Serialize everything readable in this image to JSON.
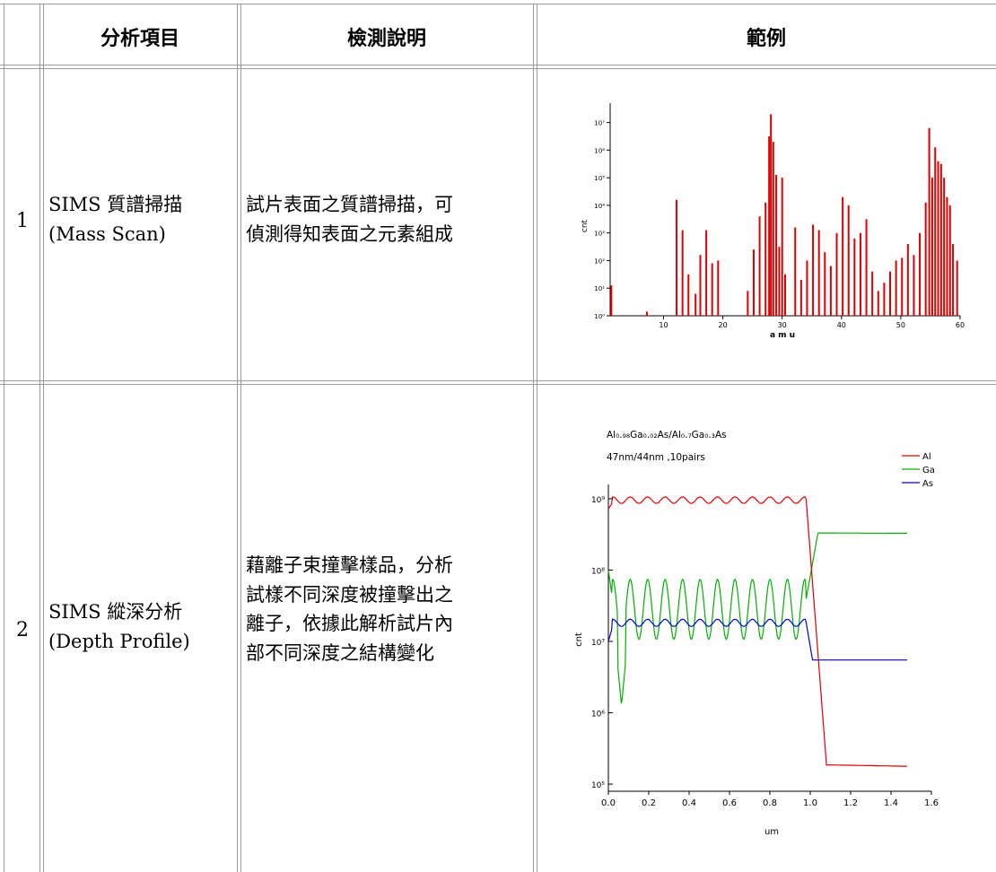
{
  "table": {
    "headers": [
      "分析項目",
      "檢測說明",
      "範例"
    ],
    "rows": [
      {
        "index": "1",
        "item_line1": "SIMS 質譜掃描",
        "item_line2": "(Mass Scan)",
        "desc_lines": [
          "試片表面之質譜掃描，可",
          "偵測得知表面之元素組成"
        ]
      },
      {
        "index": "2",
        "item_line1": "SIMS 縱深分析",
        "item_line2": "(Depth Profile)",
        "desc_lines": [
          "藉離子束撞擊樣品，分析",
          "試樣不同深度被撞擊出之",
          "離子，依據此解析試片內",
          "部不同深度之結構變化"
        ]
      }
    ]
  },
  "chart_data": [
    {
      "type": "bar",
      "xlabel": "a m u",
      "ylabel": "cnt",
      "xticks": [
        "10",
        "20",
        "30",
        "40",
        "50",
        "60"
      ],
      "yticks": [
        "10⁰",
        "10¹",
        "10²",
        "10³",
        "10⁴",
        "10⁵",
        "10⁶",
        "10⁷"
      ],
      "xlim": [
        1,
        60
      ],
      "ylim_log10": [
        0,
        7.7
      ],
      "color": "#e00000",
      "points": [
        [
          1.2,
          1.1
        ],
        [
          7.2,
          0.15
        ],
        [
          12.2,
          4.2
        ],
        [
          13.2,
          3.1
        ],
        [
          14.2,
          1.5
        ],
        [
          15.4,
          0.8
        ],
        [
          16.2,
          2.2
        ],
        [
          17.2,
          3.1
        ],
        [
          18.2,
          1.9
        ],
        [
          19.2,
          2.0
        ],
        [
          24.2,
          0.9
        ],
        [
          25.2,
          2.4
        ],
        [
          26.2,
          3.6
        ],
        [
          27.2,
          4.1
        ],
        [
          27.8,
          6.5
        ],
        [
          28.1,
          7.3
        ],
        [
          28.5,
          6.3
        ],
        [
          29.0,
          5.1
        ],
        [
          29.5,
          2.5
        ],
        [
          30.0,
          5.0
        ],
        [
          30.5,
          1.5
        ],
        [
          32.2,
          3.2
        ],
        [
          33.2,
          1.3
        ],
        [
          34.2,
          2.0
        ],
        [
          35.2,
          3.3
        ],
        [
          36.2,
          3.1
        ],
        [
          37.2,
          2.3
        ],
        [
          38.2,
          1.8
        ],
        [
          39.2,
          3.0
        ],
        [
          40.2,
          4.3
        ],
        [
          41.2,
          4.0
        ],
        [
          42.2,
          2.8
        ],
        [
          43.2,
          3.0
        ],
        [
          44.2,
          3.5
        ],
        [
          45.2,
          1.6
        ],
        [
          46.2,
          0.9
        ],
        [
          47.2,
          1.2
        ],
        [
          48.2,
          1.6
        ],
        [
          49.2,
          2.0
        ],
        [
          50.2,
          2.1
        ],
        [
          51.2,
          2.6
        ],
        [
          52.2,
          2.2
        ],
        [
          53.2,
          3.0
        ],
        [
          54.2,
          4.1
        ],
        [
          54.8,
          6.8
        ],
        [
          55.3,
          5.0
        ],
        [
          55.8,
          6.1
        ],
        [
          56.3,
          5.6
        ],
        [
          56.8,
          5.5
        ],
        [
          57.3,
          5.0
        ],
        [
          57.8,
          4.3
        ],
        [
          58.3,
          4.0
        ],
        [
          58.8,
          2.6
        ],
        [
          59.5,
          2.0
        ]
      ]
    },
    {
      "type": "line",
      "title": "Al₀.₉₈Ga₀.₀₂As/Al₀.₇Ga₀.₃As",
      "subtitle": "47nm/44nm ,10pairs",
      "xlabel": "um",
      "ylabel": "cnt",
      "xticks": [
        "0.0",
        "0.2",
        "0.4",
        "0.6",
        "0.8",
        "1.0",
        "1.2",
        "1.4",
        "1.6"
      ],
      "yticks": [
        "10⁵",
        "10⁶",
        "10⁷",
        "10⁸",
        "10⁹"
      ],
      "xlim": [
        0,
        1.6
      ],
      "ylim_log10": [
        4.9,
        9.2
      ],
      "legend_position": "top-right",
      "series": [
        {
          "name": "Al",
          "color": "#e00000"
        },
        {
          "name": "Ga",
          "color": "#00b000"
        },
        {
          "name": "As",
          "color": "#0000e0"
        }
      ]
    }
  ]
}
